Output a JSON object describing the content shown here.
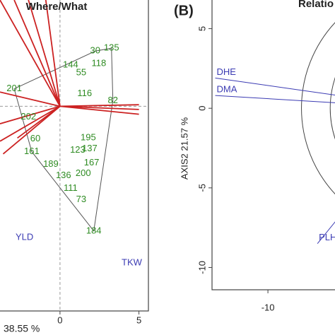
{
  "chart_data": [
    {
      "type": "biplot",
      "title": "Where/What",
      "x_label": "38.55 %",
      "xlim": [
        -3.8,
        5.6
      ],
      "ylim": [
        -12.9,
        6.7
      ],
      "xticks": [
        0,
        5
      ],
      "points": {
        "labels": [
          "135",
          "30",
          "118",
          "144",
          "55",
          "116",
          "82",
          "201",
          "202",
          "60",
          "123",
          "195",
          "137",
          "167",
          "200",
          "136",
          "111",
          "73",
          "184",
          "189",
          "161"
        ],
        "x": [
          3.26,
          2.23,
          2.46,
          0.67,
          1.34,
          1.56,
          3.35,
          -2.9,
          -2.0,
          -1.56,
          1.12,
          1.79,
          1.88,
          2.0,
          1.47,
          0.22,
          0.67,
          1.34,
          2.14,
          -0.58,
          -1.79
        ],
        "y": [
          3.66,
          3.48,
          2.68,
          2.59,
          2.1,
          0.8,
          0.36,
          1.1,
          -0.67,
          -2.05,
          -2.77,
          -2.0,
          -2.68,
          -3.57,
          -4.24,
          -4.38,
          -5.18,
          -5.89,
          -7.86,
          -3.66,
          -2.86
        ],
        "color": "#2e8b22"
      },
      "vectors": {
        "x": [
          -3.8,
          -2.9,
          -2.0,
          -0.9,
          -3.8,
          -3.8,
          -3.8,
          5.0,
          5.0,
          5.0,
          -3.6,
          -2.7
        ],
        "y": [
          6.7,
          6.7,
          6.7,
          6.7,
          0.9,
          -1.1,
          -2.2,
          0.1,
          -0.2,
          -0.5,
          -3.0,
          -2.0
        ],
        "color": "#cc2222"
      },
      "trait_labels": [
        "YLD",
        "TKW"
      ],
      "trait_color": "#3b3bb3"
    },
    {
      "type": "correlation",
      "panel": "(B)",
      "title": "Relatio",
      "y_label": "AXIS2 21.57 %",
      "xlim": [
        -13.5,
        -5.8
      ],
      "ylim": [
        -11.4,
        6.8
      ],
      "xticks": [
        -10
      ],
      "yticks": [
        5,
        0,
        -5,
        -10
      ],
      "circle_radii": [
        7.9,
        6.1
      ],
      "vectors": {
        "labels": [
          "DHE",
          "DMA",
          "PLH"
        ],
        "x": [
          -13.3,
          -13.3,
          -6.9
        ],
        "y": [
          1.9,
          0.8,
          -8.5
        ],
        "color": "#3b3bb3"
      }
    }
  ]
}
